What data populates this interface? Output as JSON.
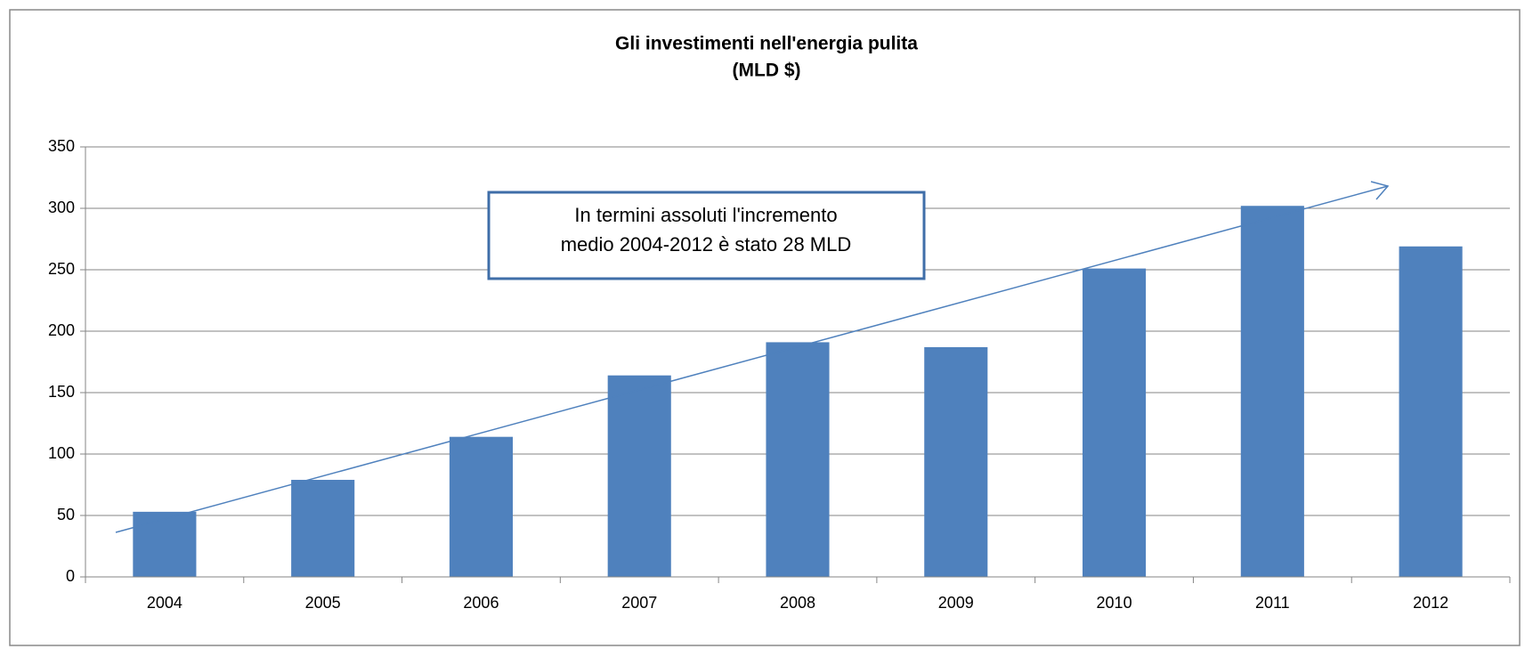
{
  "chart_data": {
    "type": "bar",
    "title": "Gli investimenti nell'energia pulita",
    "subtitle": "(MLD $)",
    "annotation": [
      "In termini assoluti l'incremento",
      "medio 2004-2012 è stato   28 MLD"
    ],
    "categories": [
      "2004",
      "2005",
      "2006",
      "2007",
      "2008",
      "2009",
      "2010",
      "2011",
      "2012"
    ],
    "values": [
      53,
      79,
      114,
      164,
      191,
      187,
      251,
      302,
      269
    ],
    "color": "#4f81bd",
    "ylim": [
      0,
      350
    ],
    "yticks": [
      0,
      50,
      100,
      150,
      200,
      250,
      300,
      350
    ],
    "grid": true
  }
}
